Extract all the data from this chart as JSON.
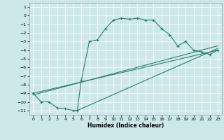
{
  "title": "",
  "xlabel": "Humidex (Indice chaleur)",
  "ylabel": "",
  "bg_color": "#cce8e8",
  "grid_color": "#ffffff",
  "line_color": "#2e7d6e",
  "xlim": [
    -0.5,
    23.5
  ],
  "ylim": [
    -11.5,
    1.5
  ],
  "yticks": [
    1,
    0,
    -1,
    -2,
    -3,
    -4,
    -5,
    -6,
    -7,
    -8,
    -9,
    -10,
    -11
  ],
  "xticks": [
    0,
    1,
    2,
    3,
    4,
    5,
    6,
    7,
    8,
    9,
    10,
    11,
    12,
    13,
    14,
    15,
    16,
    17,
    18,
    19,
    20,
    21,
    22,
    23
  ],
  "curve1_x": [
    0,
    1,
    2,
    3,
    4,
    5,
    5.5,
    6,
    7,
    8,
    9,
    10,
    11,
    12,
    13,
    14,
    15,
    16,
    17,
    18,
    19,
    20,
    21,
    22,
    23
  ],
  "curve1_y": [
    -9,
    -10,
    -10,
    -10.7,
    -10.8,
    -11,
    -11,
    -7.5,
    -3.0,
    -2.8,
    -1.5,
    -0.5,
    -0.3,
    -0.4,
    -0.3,
    -0.5,
    -0.5,
    -1.5,
    -2.2,
    -3.5,
    -3.0,
    -4.0,
    -4.2,
    -4.5,
    -4.0
  ],
  "line2_x": [
    0,
    23
  ],
  "line2_y": [
    -9.0,
    -4.0
  ],
  "line3_x": [
    0,
    23
  ],
  "line3_y": [
    -9.2,
    -3.5
  ],
  "line4_x": [
    5.5,
    23
  ],
  "line4_y": [
    -11.0,
    -3.8
  ]
}
